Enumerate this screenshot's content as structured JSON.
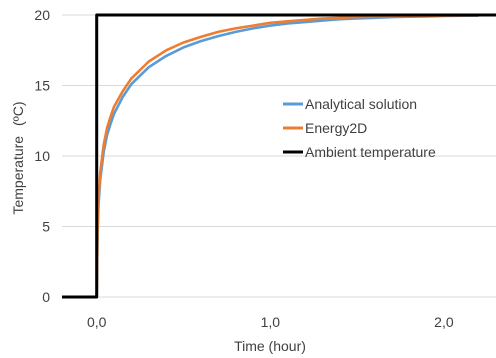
{
  "chart_data": {
    "type": "line",
    "title": "",
    "xlabel": "Time (hour)",
    "ylabel_main": "Temperature",
    "ylabel_unit": "(ºC)",
    "xlim": [
      -0.2,
      2.3
    ],
    "ylim": [
      0,
      20
    ],
    "x_ticks": [
      0,
      1,
      2
    ],
    "x_tick_labels": [
      "0,0",
      "1,0",
      "2,0"
    ],
    "y_ticks": [
      0,
      5,
      10,
      15,
      20
    ],
    "y_tick_labels": [
      "0",
      "5",
      "10",
      "15",
      "20"
    ],
    "grid": "horizontal",
    "legend_position": "center-right",
    "series": [
      {
        "name": "Analytical solution",
        "color": "#5b9bd5",
        "x": [
          0,
          0.005,
          0.01,
          0.02,
          0.04,
          0.06,
          0.08,
          0.1,
          0.15,
          0.2,
          0.3,
          0.4,
          0.5,
          0.6,
          0.7,
          0.8,
          0.9,
          1.0,
          1.1,
          1.2,
          1.3,
          1.4,
          1.5,
          1.6,
          1.7,
          1.8,
          1.9,
          2.0,
          2.1,
          2.2
        ],
        "y": [
          0,
          4.5,
          6.5,
          8.3,
          10.3,
          11.5,
          12.3,
          13.0,
          14.2,
          15.1,
          16.3,
          17.1,
          17.7,
          18.15,
          18.5,
          18.8,
          19.05,
          19.25,
          19.4,
          19.5,
          19.6,
          19.7,
          19.75,
          19.8,
          19.85,
          19.88,
          19.9,
          19.93,
          19.95,
          19.96
        ]
      },
      {
        "name": "Energy2D",
        "color": "#ed7d31",
        "x": [
          0,
          0.005,
          0.01,
          0.02,
          0.04,
          0.06,
          0.08,
          0.1,
          0.15,
          0.2,
          0.3,
          0.4,
          0.5,
          0.6,
          0.7,
          0.8,
          0.9,
          1.0,
          1.1,
          1.2,
          1.3,
          1.4,
          1.5,
          1.6,
          1.7,
          1.8,
          1.9,
          2.0,
          2.1,
          2.2
        ],
        "y": [
          0,
          5.0,
          7.0,
          8.8,
          10.8,
          12.0,
          12.8,
          13.5,
          14.6,
          15.5,
          16.7,
          17.5,
          18.05,
          18.45,
          18.8,
          19.05,
          19.25,
          19.45,
          19.55,
          19.65,
          19.75,
          19.8,
          19.85,
          19.88,
          19.9,
          19.92,
          19.94,
          19.96,
          19.97,
          19.98
        ]
      },
      {
        "name": "Ambient temperature",
        "color": "#000000",
        "x": [
          -0.2,
          0,
          0,
          2.3
        ],
        "y": [
          0,
          0,
          20,
          20
        ]
      }
    ]
  }
}
